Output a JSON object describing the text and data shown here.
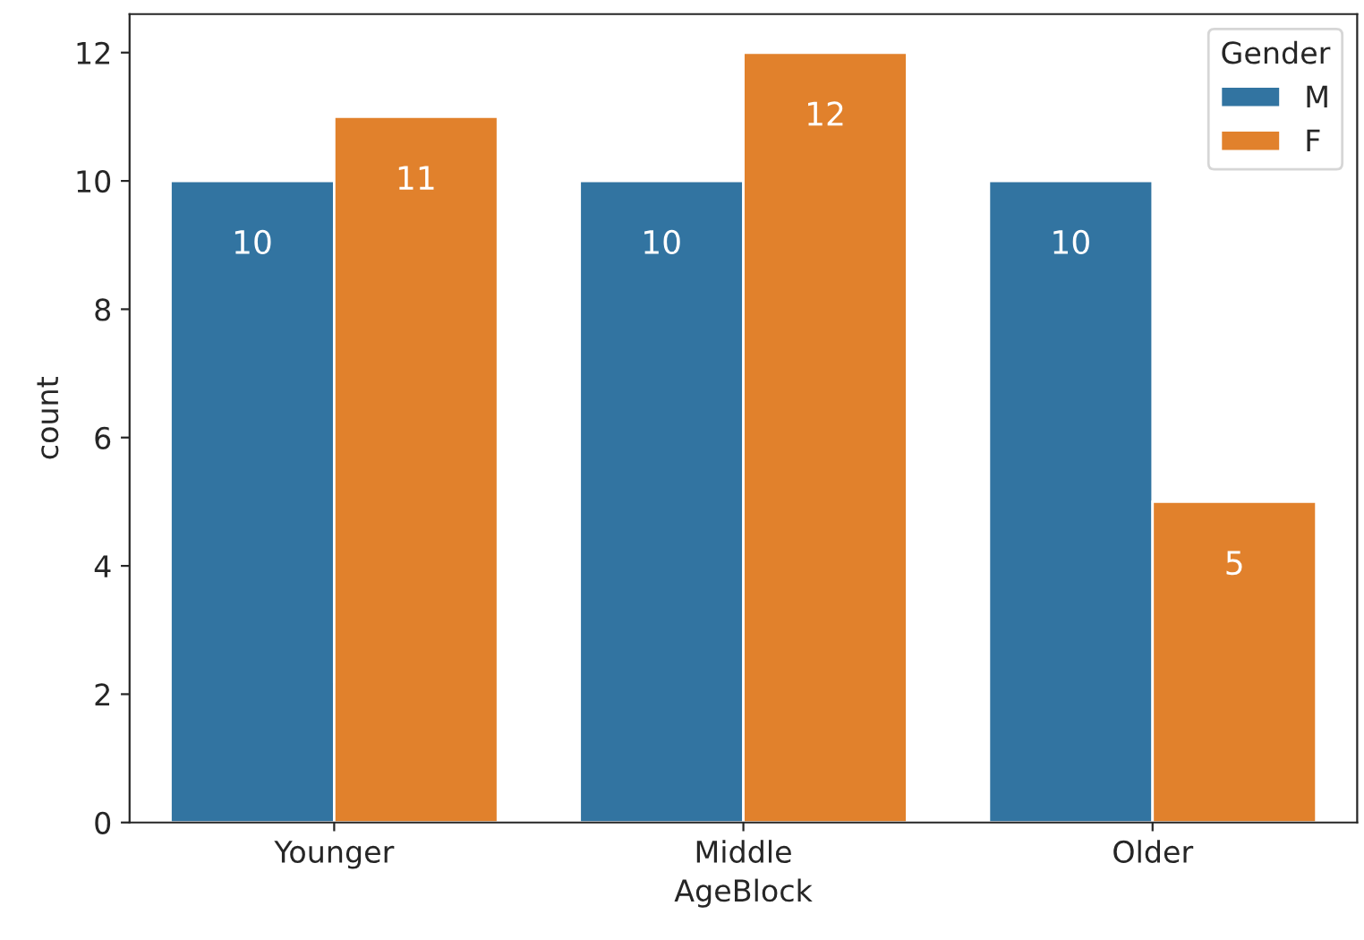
{
  "chart_data": {
    "type": "bar",
    "xlabel": "AgeBlock",
    "ylabel": "count",
    "legend_title": "Gender",
    "categories": [
      "Younger",
      "Middle",
      "Older"
    ],
    "series": [
      {
        "name": "M",
        "color": "#3274a1",
        "values": [
          10,
          10,
          10
        ]
      },
      {
        "name": "F",
        "color": "#e1812c",
        "values": [
          11,
          12,
          5
        ]
      }
    ],
    "ylim": [
      0,
      12.6
    ],
    "yticks": [
      0,
      2,
      4,
      6,
      8,
      10,
      12
    ],
    "data_labels": true,
    "legend": "top right",
    "grid": false
  }
}
